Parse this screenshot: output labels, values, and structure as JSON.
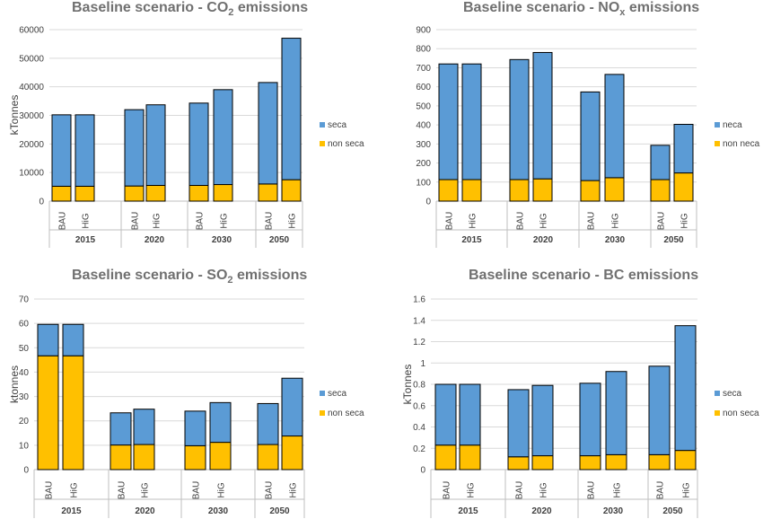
{
  "colors": {
    "upper": "#5b9bd5",
    "lower": "#ffc000",
    "grid": "#d9d9d9",
    "axis": "#bfbfbf",
    "text": "#404040",
    "title": "#707070"
  },
  "chart_data": [
    {
      "type": "bar",
      "stacked": true,
      "title_parts": {
        "main": "Baseline scenario  - CO",
        "sub": "2",
        "tail": " emissions"
      },
      "ylabel": "kTonnes",
      "ylim": [
        0,
        60000
      ],
      "yticks": [
        "0",
        "10000",
        "20000",
        "30000",
        "40000",
        "50000",
        "60000"
      ],
      "grid": true,
      "legend_position": "right",
      "groups": [
        "2015",
        "2020",
        "2030",
        "2050"
      ],
      "categories": [
        "BAU",
        "HiG",
        "BAU",
        "HiG",
        "BAU",
        "HiG",
        "BAU",
        "HiG"
      ],
      "series": [
        {
          "name": "non seca",
          "values": [
            5200,
            5200,
            5300,
            5500,
            5500,
            5800,
            6000,
            7500
          ]
        },
        {
          "name": "seca",
          "values": [
            25000,
            25000,
            26700,
            28200,
            28800,
            33200,
            35500,
            49500
          ]
        }
      ]
    },
    {
      "type": "bar",
      "stacked": true,
      "title_parts": {
        "main": "Baseline scenario  - NO",
        "sub": "x",
        "tail": " emissions"
      },
      "ylabel": "",
      "ylim": [
        0,
        900
      ],
      "yticks": [
        "0",
        "100",
        "200",
        "300",
        "400",
        "500",
        "600",
        "700",
        "800",
        "900"
      ],
      "grid": true,
      "legend_position": "right",
      "groups": [
        "2015",
        "2020",
        "2030",
        "2050"
      ],
      "categories": [
        "BAU",
        "HiG",
        "BAU",
        "HiG",
        "BAU",
        "HiG",
        "BAU",
        "HiG"
      ],
      "series": [
        {
          "name": "non neca",
          "values": [
            113,
            113,
            113,
            117,
            108,
            123,
            113,
            148
          ]
        },
        {
          "name": "neca",
          "values": [
            607,
            607,
            630,
            663,
            465,
            542,
            180,
            255
          ]
        }
      ]
    },
    {
      "type": "bar",
      "stacked": true,
      "title_parts": {
        "main": "Baseline scenario  - SO",
        "sub": "2",
        "tail": " emissions"
      },
      "ylabel": "ktonnes",
      "ylim": [
        0,
        70
      ],
      "yticks": [
        "0",
        "10",
        "20",
        "30",
        "40",
        "50",
        "60",
        "70"
      ],
      "grid": true,
      "legend_position": "right",
      "groups": [
        "2015",
        "2020",
        "2030",
        "2050"
      ],
      "categories": [
        "BAU",
        "HiG",
        "BAU",
        "HiG",
        "BAU",
        "HiG",
        "BAU",
        "HiG"
      ],
      "series": [
        {
          "name": "non seca",
          "values": [
            46.7,
            46.7,
            10.1,
            10.3,
            9.8,
            11.2,
            10.3,
            13.8
          ]
        },
        {
          "name": "seca",
          "values": [
            12.9,
            12.9,
            13.2,
            14.5,
            14.2,
            16.3,
            16.8,
            23.7
          ]
        }
      ]
    },
    {
      "type": "bar",
      "stacked": true,
      "title_parts": {
        "main": "Baseline scenario  - BC emissions",
        "sub": "",
        "tail": ""
      },
      "ylabel": "kTonnes",
      "ylim": [
        0,
        1.6
      ],
      "yticks": [
        "0",
        "0.2",
        "0.4",
        "0.6",
        "0.8",
        "1",
        "1.2",
        "1.4",
        "1.6"
      ],
      "grid": true,
      "legend_position": "right",
      "groups": [
        "2015",
        "2020",
        "2030",
        "2050"
      ],
      "categories": [
        "BAU",
        "HiG",
        "BAU",
        "HiG",
        "BAU",
        "HiG",
        "BAU",
        "HiG"
      ],
      "series": [
        {
          "name": "non seca",
          "values": [
            0.23,
            0.23,
            0.12,
            0.13,
            0.13,
            0.14,
            0.14,
            0.18
          ]
        },
        {
          "name": "seca",
          "values": [
            0.57,
            0.57,
            0.63,
            0.66,
            0.68,
            0.78,
            0.83,
            1.17
          ]
        }
      ]
    }
  ]
}
